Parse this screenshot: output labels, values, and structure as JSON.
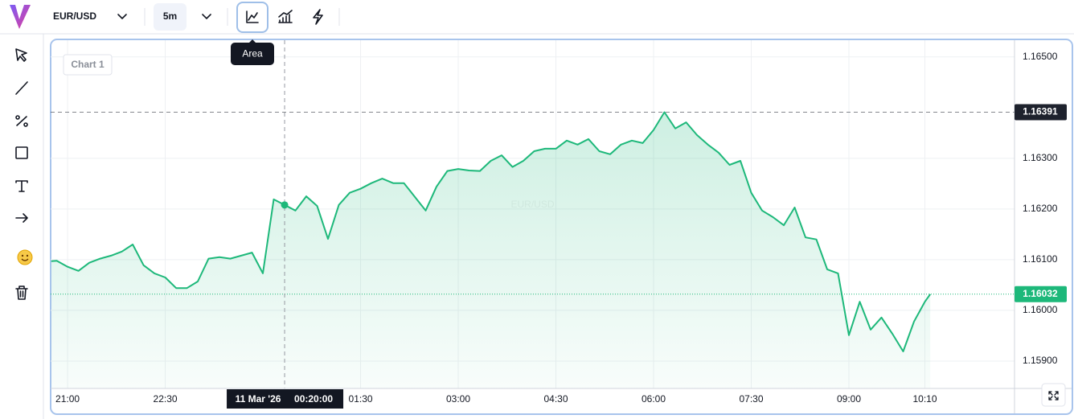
{
  "toolbar": {
    "symbol": "EUR/USD",
    "interval": "5m",
    "tooltip": "Area"
  },
  "chart_data": {
    "type": "area",
    "title": "Chart 1",
    "watermark": "EUR/USD",
    "color": "#1db87a",
    "grid": true,
    "x": [
      1245,
      1250,
      1260,
      1270,
      1280,
      1290,
      1300,
      1310,
      1320,
      1330,
      1340,
      1350,
      1360,
      1370,
      1380,
      1390,
      1400,
      1410,
      1420,
      1430,
      1440,
      1450,
      1460,
      1470,
      1480,
      1490,
      1500,
      1510,
      1520,
      1530,
      1540,
      1550,
      1560,
      1570,
      1580,
      1590,
      1600,
      1610,
      1620,
      1630,
      1640,
      1650,
      1660,
      1670,
      1680,
      1690,
      1700,
      1710,
      1720,
      1730,
      1740,
      1750,
      1760,
      1770,
      1780,
      1790,
      1800,
      1810,
      1820,
      1830,
      1840,
      1850,
      1860,
      1870,
      1880,
      1890,
      1900,
      1910,
      1920,
      1930,
      1940,
      1950,
      1960,
      1970,
      1980,
      1990,
      2000,
      2010,
      2020,
      2030,
      2040,
      2050,
      2055
    ],
    "values": [
      1.16097,
      1.16098,
      1.16086,
      1.16078,
      1.16094,
      1.16102,
      1.16108,
      1.16116,
      1.1613,
      1.16089,
      1.16073,
      1.16065,
      1.16044,
      1.16044,
      1.16057,
      1.16102,
      1.16105,
      1.16102,
      1.16108,
      1.16114,
      1.16073,
      1.16219,
      1.16208,
      1.16197,
      1.16225,
      1.16206,
      1.16141,
      1.16208,
      1.16232,
      1.1624,
      1.16251,
      1.1626,
      1.16251,
      1.16251,
      1.16224,
      1.16197,
      1.16244,
      1.16275,
      1.16279,
      1.16276,
      1.16275,
      1.16295,
      1.16306,
      1.16283,
      1.16295,
      1.16314,
      1.16319,
      1.16319,
      1.16335,
      1.16327,
      1.16338,
      1.16314,
      1.16308,
      1.16327,
      1.16335,
      1.1633,
      1.16356,
      1.16391,
      1.16359,
      1.16371,
      1.16346,
      1.16327,
      1.16311,
      1.16287,
      1.16295,
      1.16232,
      1.16197,
      1.16184,
      1.16168,
      1.16203,
      1.16144,
      1.1614,
      1.16081,
      1.16073,
      1.15951,
      1.16017,
      1.15962,
      1.15986,
      1.15954,
      1.15919,
      1.15978,
      1.16017,
      1.16032
    ],
    "xlim": [
      1244.4,
      2132.6
    ],
    "xticks": [
      {
        "value": 1260,
        "label": "21:00"
      },
      {
        "value": 1350,
        "label": "22:30"
      },
      {
        "value": 1530,
        "label": "01:30"
      },
      {
        "value": 1620,
        "label": "03:00"
      },
      {
        "value": 1710,
        "label": "04:30"
      },
      {
        "value": 1800,
        "label": "06:00"
      },
      {
        "value": 1890,
        "label": "07:30"
      },
      {
        "value": 1980,
        "label": "09:00"
      },
      {
        "value": 2050,
        "label": "10:10"
      }
    ],
    "ylim": [
      1.15846,
      1.16533
    ],
    "yticks": [
      {
        "value": 1.165,
        "label": "1.16500"
      },
      {
        "value": 1.163,
        "label": "1.16300"
      },
      {
        "value": 1.162,
        "label": "1.16200"
      },
      {
        "value": 1.161,
        "label": "1.16100"
      },
      {
        "value": 1.16,
        "label": "1.16000"
      },
      {
        "value": 1.159,
        "label": "1.15900"
      }
    ],
    "price_lines": [
      {
        "value": 1.16391,
        "color": "#1e222d"
      },
      {
        "value": 1.16032,
        "color": "#1db87a"
      }
    ],
    "crosshair": {
      "x": 1460,
      "date": "11 Mar '26",
      "time": "00:20:00"
    }
  }
}
